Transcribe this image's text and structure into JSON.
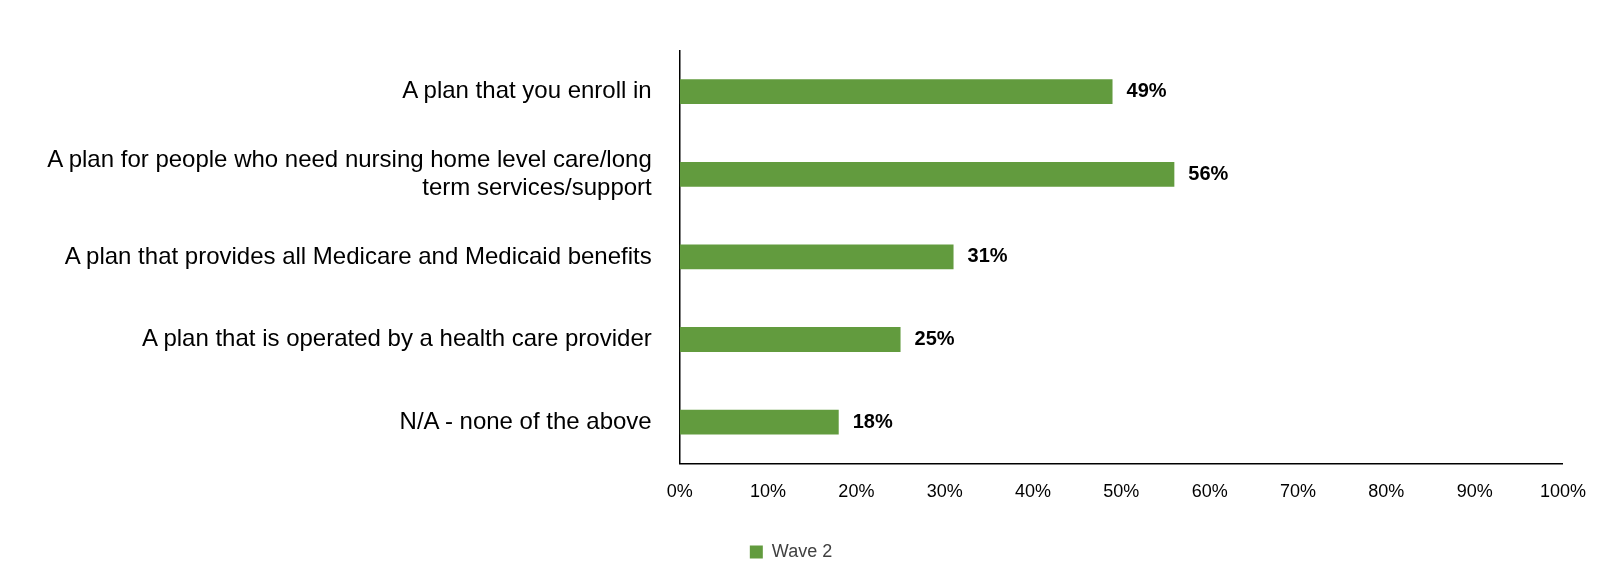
{
  "chart_data": {
    "type": "bar",
    "orientation": "horizontal",
    "categories": [
      "A plan that you enroll in",
      "A plan for people who need nursing home level care/long term services/support",
      "A plan that provides all Medicare and Medicaid benefits",
      "A plan that is operated by a health care provider",
      "N/A - none of the above"
    ],
    "series": [
      {
        "name": "Wave 2",
        "color": "#629b3e",
        "values": [
          49,
          56,
          31,
          25,
          18
        ],
        "value_labels": [
          "49%",
          "56%",
          "31%",
          "25%",
          "18%"
        ]
      }
    ],
    "xlim": [
      0,
      100
    ],
    "xticks": [
      {
        "value": 0,
        "label": "0%"
      },
      {
        "value": 10,
        "label": "10%"
      },
      {
        "value": 20,
        "label": "20%"
      },
      {
        "value": 30,
        "label": "30%"
      },
      {
        "value": 40,
        "label": "40%"
      },
      {
        "value": 50,
        "label": "50%"
      },
      {
        "value": 60,
        "label": "60%"
      },
      {
        "value": 70,
        "label": "70%"
      },
      {
        "value": 80,
        "label": "80%"
      },
      {
        "value": 90,
        "label": "90%"
      },
      {
        "value": 100,
        "label": "100%"
      }
    ],
    "grid": false,
    "legend": "bottom"
  }
}
